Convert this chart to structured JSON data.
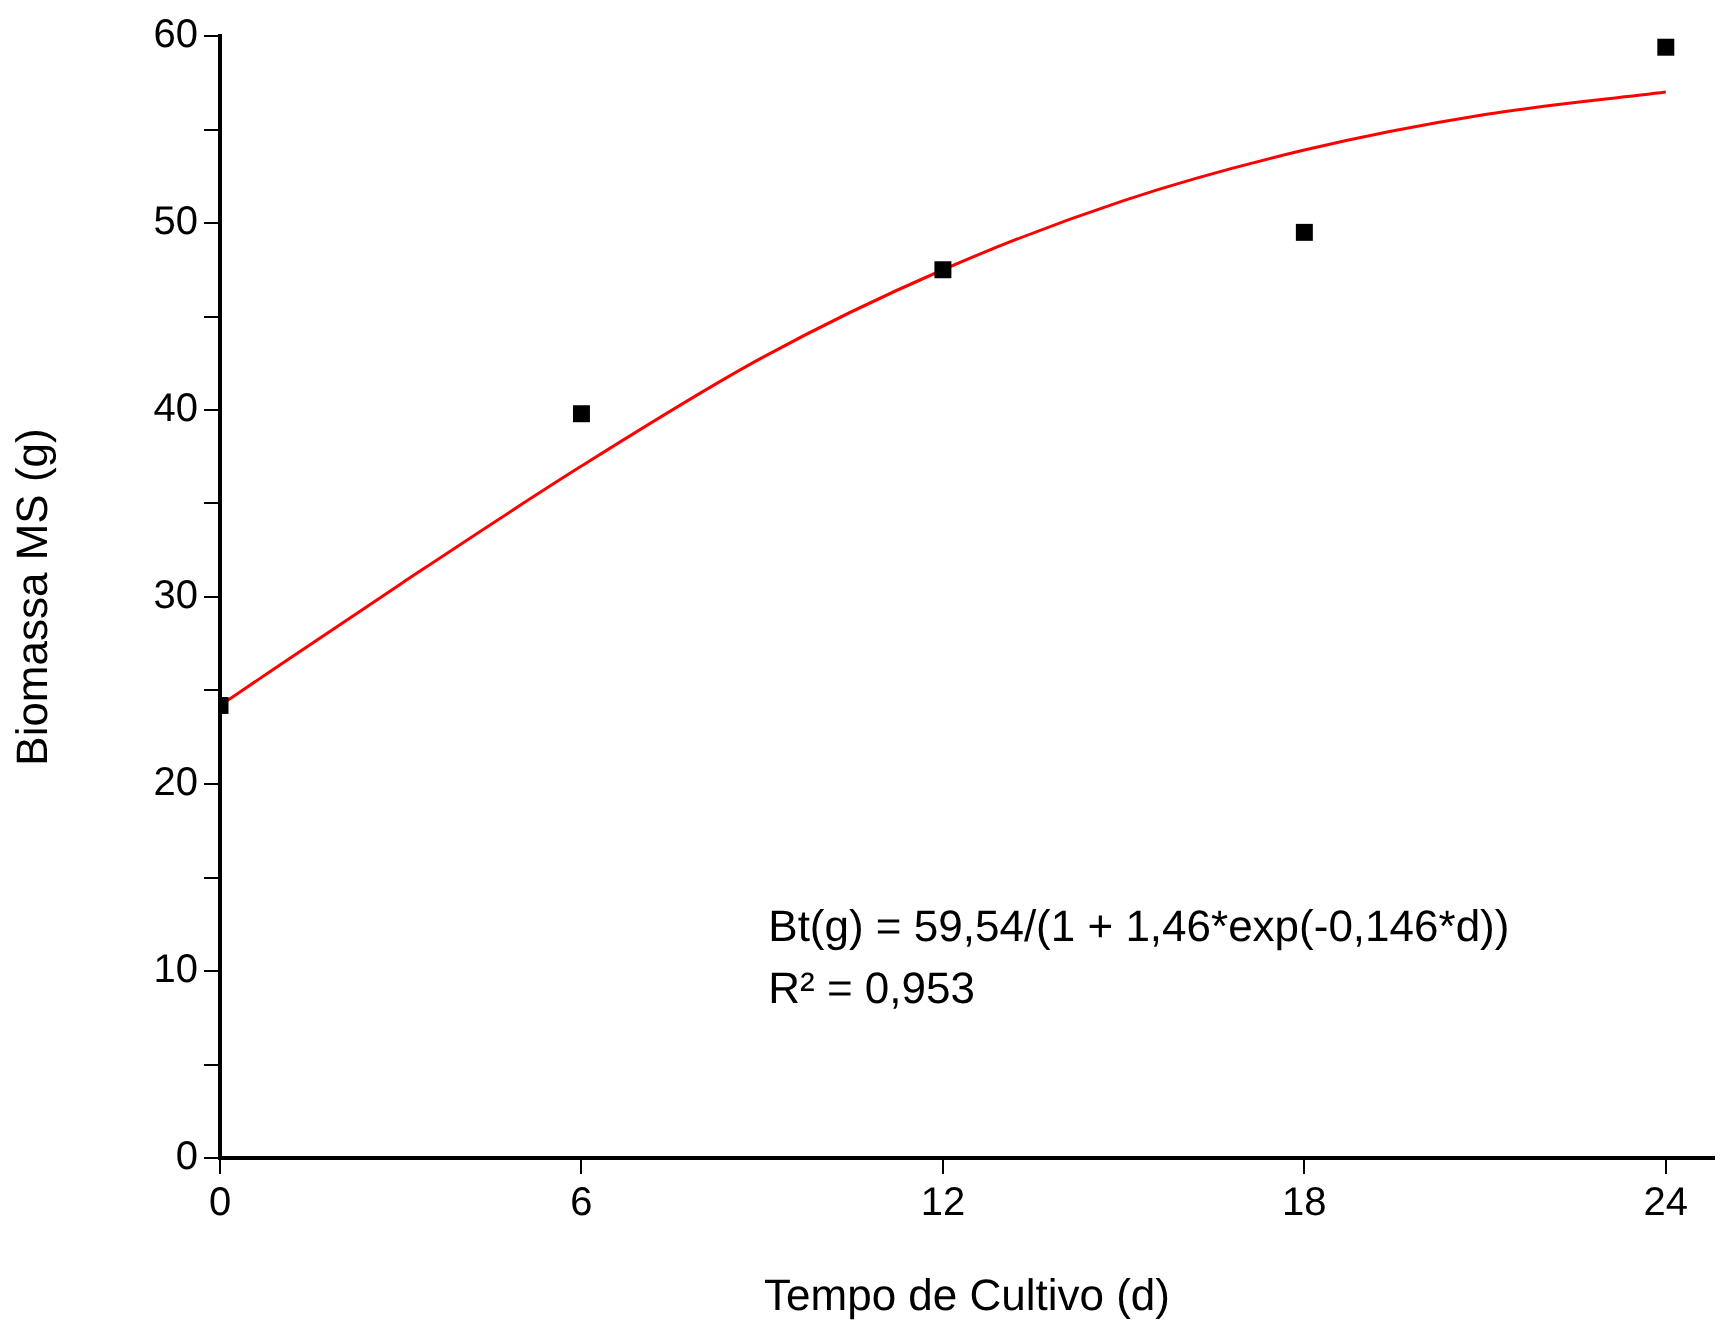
{
  "chart_data": {
    "type": "scatter",
    "xlabel": "Tempo de Cultivo (d)",
    "ylabel": "Biomassa MS (g)",
    "xlim": [
      0,
      24.8
    ],
    "xticks": [
      0,
      6,
      12,
      18,
      24
    ],
    "ylim": [
      0,
      60
    ],
    "yticks": [
      0,
      {
        "value": 5,
        "label": null
      },
      10,
      {
        "value": 15,
        "label": null
      },
      20,
      {
        "value": 25,
        "label": null
      },
      30,
      {
        "value": 35,
        "label": null
      },
      40,
      {
        "value": 45,
        "label": null
      },
      50,
      {
        "value": 55,
        "label": null
      },
      60
    ],
    "grid": false,
    "legend": false,
    "series": [
      {
        "color": "#000000",
        "marker": "square",
        "x": [
          0,
          6,
          12,
          18,
          24
        ],
        "values": [
          24.2,
          39.8,
          47.5,
          49.5,
          59.4
        ]
      },
      {
        "type": "line",
        "color": "#ff0000",
        "marker": "none",
        "line_style": "solid",
        "x": [
          0,
          3,
          6,
          9,
          12,
          15,
          18,
          21,
          24
        ],
        "values": [
          24.2,
          30.7,
          37.0,
          42.8,
          47.5,
          51.2,
          53.9,
          55.8,
          57.0
        ]
      }
    ],
    "annotations": [
      "Bt(g) = 59,54/(1 + 1,46*exp(-0,146*d))",
      "R² = 0,953"
    ]
  }
}
